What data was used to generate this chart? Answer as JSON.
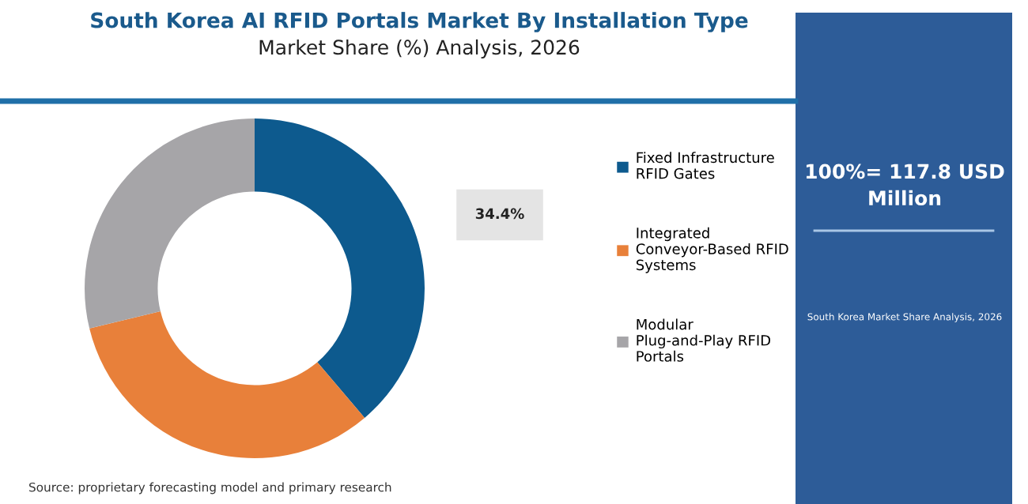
{
  "chart_data": {
    "type": "donut",
    "title": "South Korea AI RFID Portals Market By Installation Type",
    "subtitle": "Market Share (%) Analysis, 2026",
    "categories": [
      "Fixed Infrastructure RFID Gates",
      "Integrated Conveyor-Based RFID Systems",
      "Modular Plug-and-Play RFID Portals"
    ],
    "values": [
      38.8,
      32.4,
      28.8
    ],
    "colors": [
      "#0d5a8e",
      "#e8803a",
      "#a6a5a8"
    ],
    "legend": "right",
    "annotations": [
      "34.4%",
      "100%= 117.8 USD Million",
      "South Korea Market Share Analysis, 2026",
      "Source: proprietary forecasting model and primary research"
    ]
  }
}
